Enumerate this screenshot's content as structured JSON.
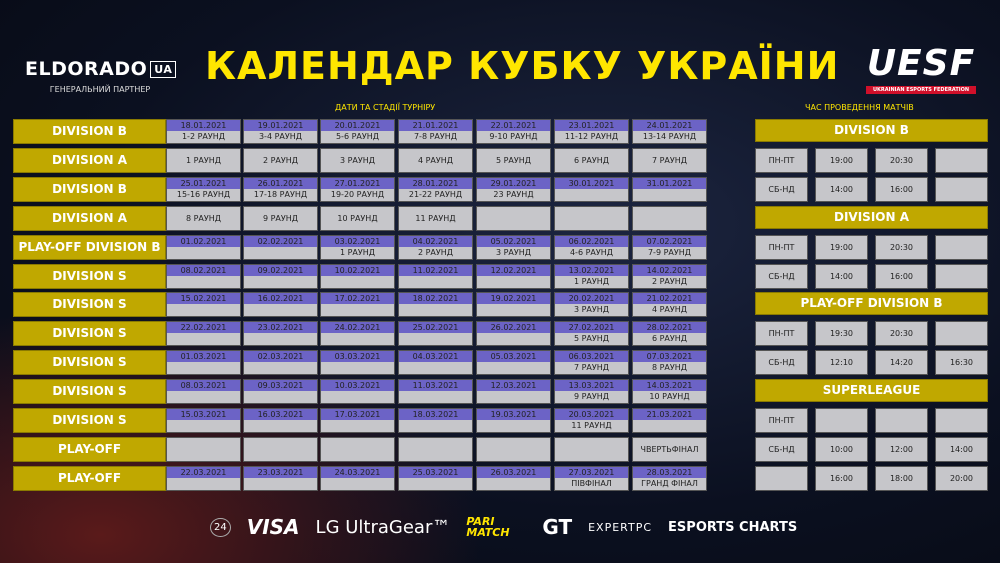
{
  "header": {
    "partner_logo": "ELDORADO",
    "partner_logo_suffix": "UA",
    "partner_caption": "ГЕНЕРАЛЬНИЙ ПАРТНЕР",
    "title": "КАЛЕНДАР КУБКУ УКРАЇНИ",
    "federation_logo": "UESF",
    "federation_caption": "UKRAINIAN ESPORTS FEDERATION"
  },
  "schedule": {
    "section_title": "ДАТИ ТА СТАДІЇ ТУРНІРУ",
    "rows": [
      {
        "label": "DIVISION B",
        "cells": [
          [
            "18.01.2021",
            "1-2 РАУНД"
          ],
          [
            "19.01.2021",
            "3-4 РАУНД"
          ],
          [
            "20.01.2021",
            "5-6 РАУНД"
          ],
          [
            "21.01.2021",
            "7-8 РАУНД"
          ],
          [
            "22.01.2021",
            "9-10 РАУНД"
          ],
          [
            "23.01.2021",
            "11-12 РАУНД"
          ],
          [
            "24.01.2021",
            "13-14 РАУНД"
          ]
        ]
      },
      {
        "label": "DIVISION A",
        "cells": [
          [
            null,
            "1 РАУНД"
          ],
          [
            null,
            "2 РАУНД"
          ],
          [
            null,
            "3 РАУНД"
          ],
          [
            null,
            "4 РАУНД"
          ],
          [
            null,
            "5 РАУНД"
          ],
          [
            null,
            "6 РАУНД"
          ],
          [
            null,
            "7 РАУНД"
          ]
        ]
      },
      {
        "label": "DIVISION B",
        "cells": [
          [
            "25.01.2021",
            "15-16 РАУНД"
          ],
          [
            "26.01.2021",
            "17-18 РАУНД"
          ],
          [
            "27.01.2021",
            "19-20 РАУНД"
          ],
          [
            "28.01.2021",
            "21-22 РАУНД"
          ],
          [
            "29.01.2021",
            "23 РАУНД"
          ],
          [
            "30.01.2021",
            ""
          ],
          [
            "31.01.2021",
            ""
          ]
        ]
      },
      {
        "label": "DIVISION A",
        "cells": [
          [
            null,
            "8 РАУНД"
          ],
          [
            null,
            "9 РАУНД"
          ],
          [
            null,
            "10 РАУНД"
          ],
          [
            null,
            "11 РАУНД"
          ],
          [
            null,
            ""
          ],
          [
            null,
            ""
          ],
          [
            null,
            ""
          ]
        ]
      },
      {
        "label": "PLAY-OFF DIVISION B",
        "cells": [
          [
            "01.02.2021",
            ""
          ],
          [
            "02.02.2021",
            ""
          ],
          [
            "03.02.2021",
            "1 РАУНД"
          ],
          [
            "04.02.2021",
            "2 РАУНД"
          ],
          [
            "05.02.2021",
            "3 РАУНД"
          ],
          [
            "06.02.2021",
            "4-6 РАУНД"
          ],
          [
            "07.02.2021",
            "7-9 РАУНД"
          ]
        ]
      },
      {
        "label": "DIVISION S",
        "cells": [
          [
            "08.02.2021",
            ""
          ],
          [
            "09.02.2021",
            ""
          ],
          [
            "10.02.2021",
            ""
          ],
          [
            "11.02.2021",
            ""
          ],
          [
            "12.02.2021",
            ""
          ],
          [
            "13.02.2021",
            "1 РАУНД"
          ],
          [
            "14.02.2021",
            "2 РАУНД"
          ]
        ]
      },
      {
        "label": "DIVISION S",
        "cells": [
          [
            "15.02.2021",
            ""
          ],
          [
            "16.02.2021",
            ""
          ],
          [
            "17.02.2021",
            ""
          ],
          [
            "18.02.2021",
            ""
          ],
          [
            "19.02.2021",
            ""
          ],
          [
            "20.02.2021",
            "3 РАУНД"
          ],
          [
            "21.02.2021",
            "4 РАУНД"
          ]
        ]
      },
      {
        "label": "DIVISION S",
        "cells": [
          [
            "22.02.2021",
            ""
          ],
          [
            "23.02.2021",
            ""
          ],
          [
            "24.02.2021",
            ""
          ],
          [
            "25.02.2021",
            ""
          ],
          [
            "26.02.2021",
            ""
          ],
          [
            "27.02.2021",
            "5 РАУНД"
          ],
          [
            "28.02.2021",
            "6 РАУНД"
          ]
        ]
      },
      {
        "label": "DIVISION S",
        "cells": [
          [
            "01.03.2021",
            ""
          ],
          [
            "02.03.2021",
            ""
          ],
          [
            "03.03.2021",
            ""
          ],
          [
            "04.03.2021",
            ""
          ],
          [
            "05.03.2021",
            ""
          ],
          [
            "06.03.2021",
            "7 РАУНД"
          ],
          [
            "07.03.2021",
            "8 РАУНД"
          ]
        ]
      },
      {
        "label": "DIVISION S",
        "cells": [
          [
            "08.03.2021",
            ""
          ],
          [
            "09.03.2021",
            ""
          ],
          [
            "10.03.2021",
            ""
          ],
          [
            "11.03.2021",
            ""
          ],
          [
            "12.03.2021",
            ""
          ],
          [
            "13.03.2021",
            "9 РАУНД"
          ],
          [
            "14.03.2021",
            "10 РАУНД"
          ]
        ]
      },
      {
        "label": "DIVISION S",
        "cells": [
          [
            "15.03.2021",
            ""
          ],
          [
            "16.03.2021",
            ""
          ],
          [
            "17.03.2021",
            ""
          ],
          [
            "18.03.2021",
            ""
          ],
          [
            "19.03.2021",
            ""
          ],
          [
            "20.03.2021",
            "11 РАУНД"
          ],
          [
            "21.03.2021",
            ""
          ]
        ]
      },
      {
        "label": "PLAY-OFF",
        "cells": [
          [
            null,
            ""
          ],
          [
            null,
            ""
          ],
          [
            null,
            ""
          ],
          [
            null,
            ""
          ],
          [
            null,
            ""
          ],
          [
            null,
            ""
          ],
          [
            null,
            "ЧВЕРТЬФІНАЛ"
          ]
        ]
      },
      {
        "label": "PLAY-OFF",
        "cells": [
          [
            "22.03.2021",
            ""
          ],
          [
            "23.03.2021",
            ""
          ],
          [
            "24.03.2021",
            ""
          ],
          [
            "25.03.2021",
            ""
          ],
          [
            "26.03.2021",
            ""
          ],
          [
            "27.03.2021",
            "ПІВФІНАЛ"
          ],
          [
            "28.03.2021",
            "ГРАНД ФІНАЛ"
          ]
        ]
      }
    ]
  },
  "match_times": {
    "section_title": "ЧАС ПРОВЕДЕННЯ МАТЧІВ",
    "groups": [
      {
        "title": "DIVISION B",
        "rows": [
          [
            "ПН-ПТ",
            "19:00",
            "20:30",
            ""
          ],
          [
            "СБ-НД",
            "14:00",
            "16:00",
            ""
          ]
        ]
      },
      {
        "title": "DIVISION A",
        "rows": [
          [
            "ПН-ПТ",
            "19:00",
            "20:30",
            ""
          ],
          [
            "СБ-НД",
            "14:00",
            "16:00",
            ""
          ]
        ]
      },
      {
        "title": "PLAY-OFF DIVISION B",
        "rows": [
          [
            "ПН-ПТ",
            "19:30",
            "20:30",
            ""
          ],
          [
            "СБ-НД",
            "12:10",
            "14:20",
            "16:30"
          ]
        ]
      },
      {
        "title": "SUPERLEAGUE",
        "rows": [
          [
            "ПН-ПТ",
            "",
            "",
            ""
          ],
          [
            "СБ-НД",
            "10:00",
            "12:00",
            "14:00"
          ],
          [
            "",
            "16:00",
            "18:00",
            "20:00"
          ]
        ]
      }
    ]
  },
  "sponsors": [
    "24",
    "VISA",
    "LG UltraGear™",
    "PARI MATCH",
    "GT",
    "EXPERTPC",
    "ESPORTS CHARTS"
  ],
  "colors": {
    "title": "#ffe600",
    "label_bg": "#c0a800",
    "date_bg": "#6c63c6",
    "cell_bg": "#c6c6ca"
  }
}
